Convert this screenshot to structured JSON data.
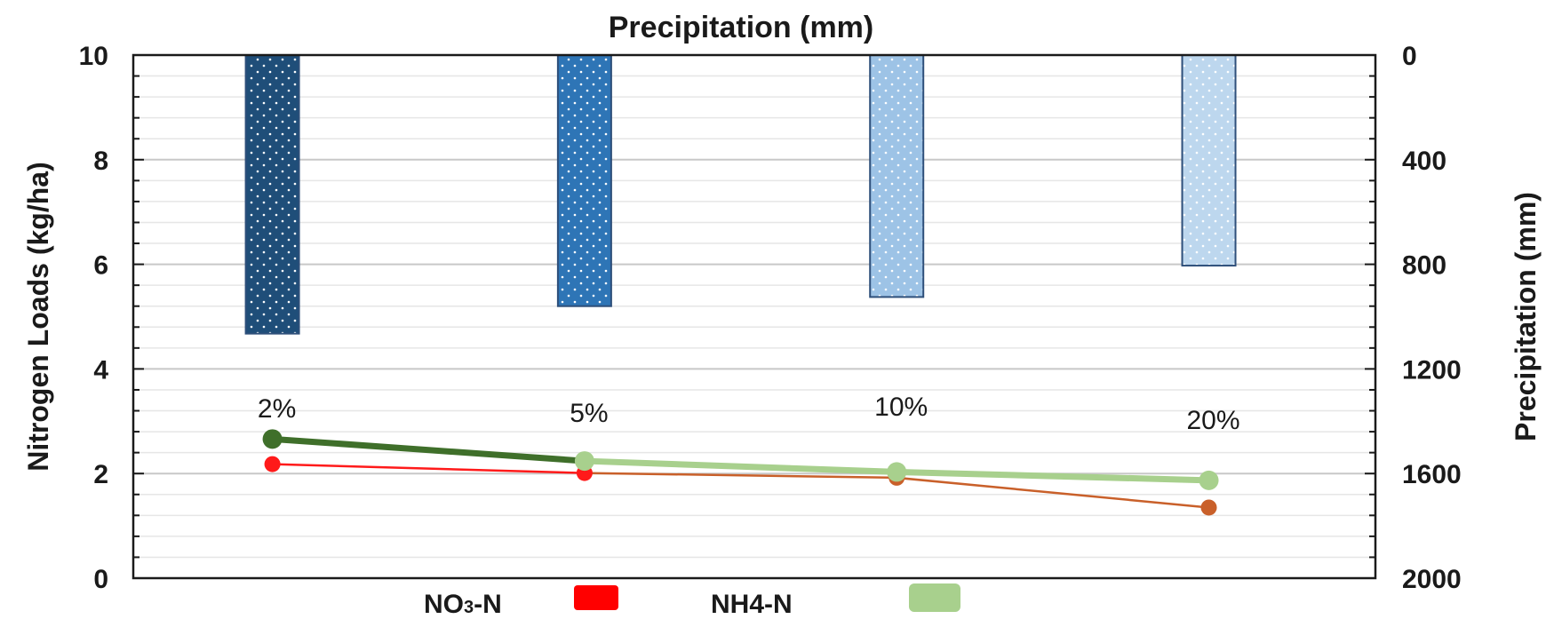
{
  "chart_data": {
    "type": "bar+line",
    "title": "Precipitation (mm)",
    "categories": [
      "2%",
      "5%",
      "10%",
      "20%"
    ],
    "left_axis": {
      "label": "Nitrogen Loads (kg/ha)",
      "range": [
        0,
        10
      ],
      "ticks": [
        0,
        2,
        4,
        6,
        8,
        10
      ],
      "tick_labels": [
        "0",
        "2",
        "4",
        "6",
        "8",
        "10"
      ]
    },
    "right_axis": {
      "label": "Precipitation (mm)",
      "range": [
        0,
        2000
      ],
      "inverted": true,
      "ticks": [
        0,
        400,
        800,
        1200,
        1600,
        2000
      ],
      "tick_labels": [
        "0",
        "400",
        "800",
        "1200",
        "1600",
        "2000"
      ]
    },
    "bars": {
      "name": "Precipitation",
      "axis": "right",
      "values": [
        1065,
        960,
        925,
        805
      ],
      "colors": [
        "#1f4e79",
        "#2e75b6",
        "#9dc3e6",
        "#bdd7ee"
      ]
    },
    "series": [
      {
        "name": "NO3-N",
        "axis": "left",
        "values": [
          2.18,
          2.01,
          1.92,
          1.35
        ],
        "line_colors": [
          "#ff1a1a",
          "#c9602a",
          "#c9602a"
        ],
        "marker_colors": [
          "#ff1a1a",
          "#ff1a1a",
          "#c9602a",
          "#c9602a"
        ]
      },
      {
        "name": "NH4-N",
        "axis": "left",
        "values": [
          2.66,
          2.24,
          2.03,
          1.87
        ],
        "line_colors": [
          "#3f6f2a",
          "#a8d08d",
          "#a8d08d"
        ],
        "marker_colors": [
          "#3f6f2a",
          "#a8d08d",
          "#a8d08d",
          "#a8d08d"
        ]
      }
    ],
    "point_labels": [
      "2%",
      "5%",
      "10%",
      "20%"
    ],
    "legend": {
      "position": "bottom",
      "items": [
        {
          "label_main": "NO",
          "label_sub": "3",
          "label_tail": "-N",
          "color": "#ff0000"
        },
        {
          "label_main": "NH4-N",
          "color": "#a8d08d"
        }
      ]
    },
    "grid": true
  }
}
